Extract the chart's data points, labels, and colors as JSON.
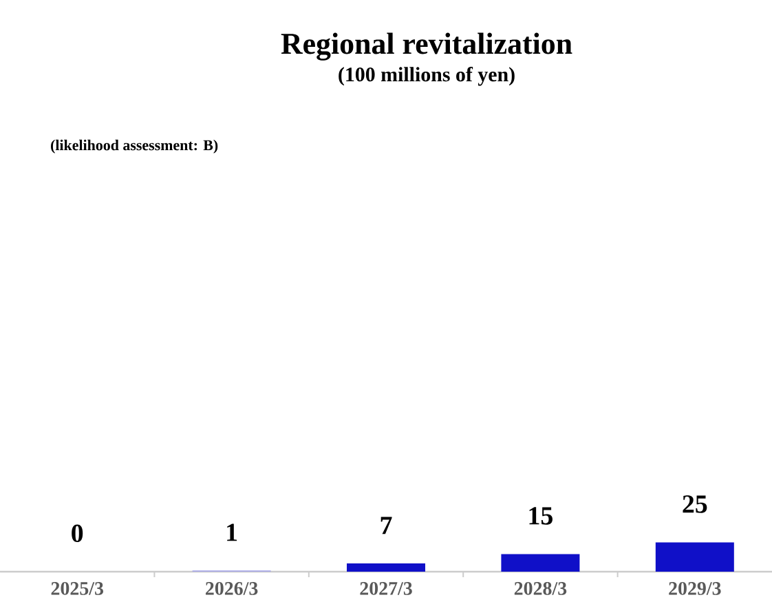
{
  "chart_data": {
    "type": "bar",
    "title": "Regional revitalization",
    "subtitle": "(100  millions of yen)",
    "annotations": [
      "(likelihood assessment: B)"
    ],
    "categories": [
      "2025/3",
      "2026/3",
      "2027/3",
      "2028/3",
      "2029/3"
    ],
    "values": [
      0,
      1,
      7,
      15,
      25
    ],
    "colors": [
      "#1010c8",
      "#a8a8e8",
      "#1010c8",
      "#1010c8",
      "#1010c8"
    ],
    "data_labels": true
  }
}
